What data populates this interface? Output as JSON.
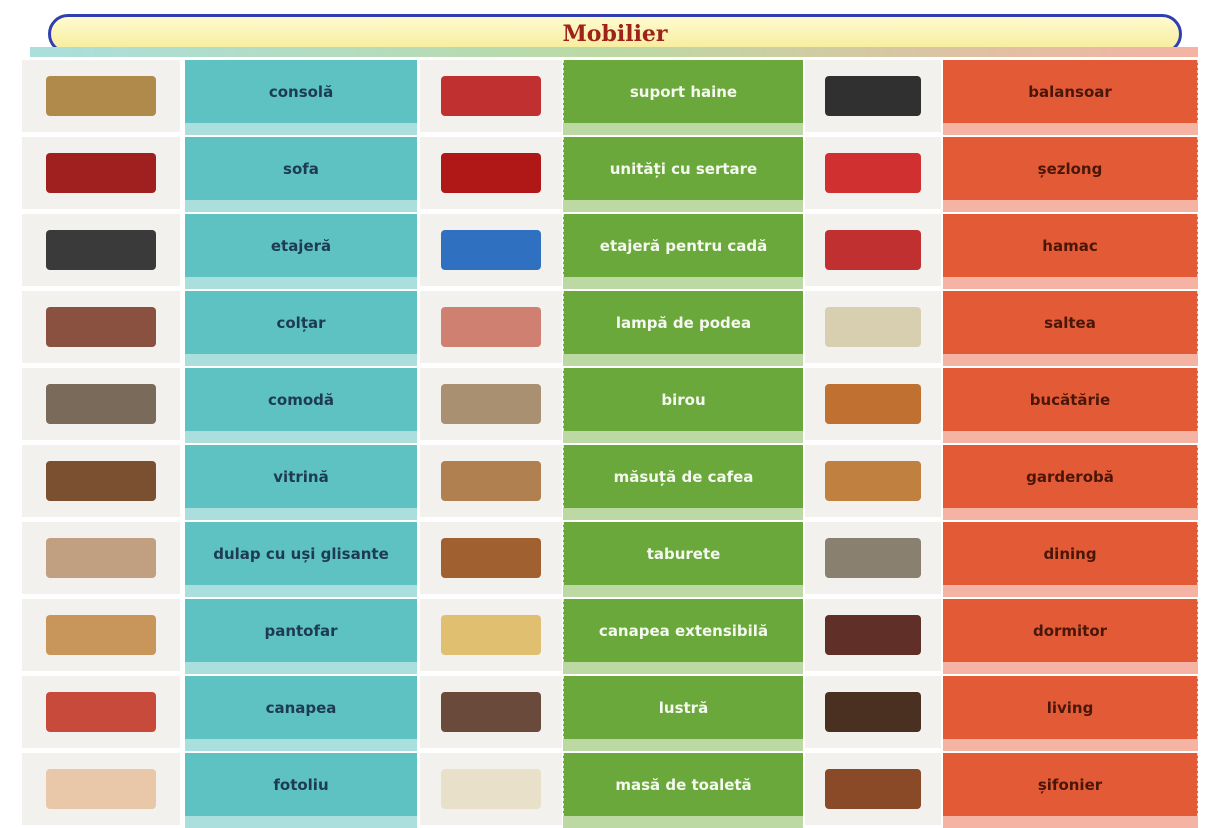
{
  "title": "Mobilier",
  "rows": [
    [
      "consolă",
      "suport haine",
      "balansoar"
    ],
    [
      "sofa",
      "unități cu sertare",
      "șezlong"
    ],
    [
      "etajeră",
      "etajeră pentru cadă",
      "hamac"
    ],
    [
      "colțar",
      "lampă de podea",
      "saltea"
    ],
    [
      "comodă",
      "birou",
      "bucătărie"
    ],
    [
      "vitrină",
      "măsuță de cafea",
      "garderobă"
    ],
    [
      "dulap cu uși glisante",
      "taburete",
      "dining"
    ],
    [
      "pantofar",
      "canapea extensibilă",
      "dormitor"
    ],
    [
      "canapea",
      "lustră",
      "living"
    ],
    [
      "fotoliu",
      "masă de toaletă",
      "șifonier"
    ]
  ]
}
